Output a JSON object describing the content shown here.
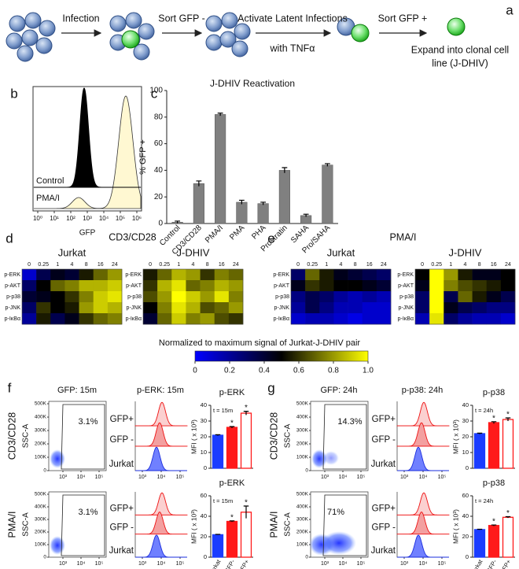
{
  "panel_labels": [
    "a",
    "b",
    "c",
    "d",
    "e",
    "f",
    "g"
  ],
  "workflow": [
    "Infection",
    "Sort GFP -",
    "Activate Latent Infections",
    "with TNFα",
    "Sort GFP +",
    "Expand into clonal cell",
    "line (J-DHIV)"
  ],
  "histogram": {
    "labels": [
      "Control",
      "PMA/I"
    ],
    "xticks": [
      "10⁰",
      "10¹",
      "10²",
      "10³",
      "10⁴",
      "10⁵",
      "10⁶"
    ],
    "xlabel": "GFP"
  },
  "chart_data": [
    {
      "type": "bar",
      "title": "J-DHIV Reactivation",
      "ylabel": "% GFP +",
      "categories": [
        "Control",
        "CD3/CD28",
        "PMA/I",
        "PMA",
        "PHA",
        "Prostratin",
        "SAHA",
        "Pro/SAHA"
      ],
      "values": [
        1,
        30,
        82,
        16,
        15,
        40,
        6,
        44
      ],
      "errors": [
        0.8,
        2,
        1,
        1.5,
        1,
        2,
        1,
        1
      ],
      "color": "#808080",
      "ylim": [
        0,
        100
      ],
      "yticks": [
        0,
        20,
        40,
        60,
        80,
        100
      ]
    },
    {
      "type": "heatmap",
      "title": "CD3/CD28",
      "columns": [
        "0",
        "0.25",
        "1",
        "4",
        "8",
        "16",
        "24"
      ],
      "rows": [
        "p-ERK",
        "p-AKT",
        "p-p38",
        "p-JNK",
        "p-IκBα"
      ],
      "panels": [
        {
          "name": "Jurkat",
          "color": "#1a1aff",
          "values": [
            [
              0.1,
              0.35,
              0.45,
              0.4,
              0.55,
              0.7,
              0.8
            ],
            [
              0.3,
              0.5,
              0.7,
              0.75,
              0.85,
              0.85,
              0.9
            ],
            [
              0.4,
              0.45,
              0.5,
              0.6,
              0.75,
              0.9,
              0.95
            ],
            [
              0.3,
              0.6,
              0.5,
              0.55,
              0.8,
              0.9,
              0.85
            ],
            [
              0.2,
              0.55,
              0.35,
              0.45,
              0.6,
              0.7,
              0.75
            ]
          ]
        },
        {
          "name": "J-DHIV",
          "color": "#ff1a1a",
          "values": [
            [
              0.55,
              0.7,
              0.85,
              0.8,
              0.6,
              0.75,
              0.7
            ],
            [
              0.6,
              0.85,
              0.95,
              0.7,
              0.75,
              0.85,
              0.8
            ],
            [
              0.65,
              0.8,
              1,
              0.9,
              0.8,
              0.95,
              0.75
            ],
            [
              0.5,
              0.75,
              0.95,
              0.85,
              0.65,
              0.7,
              0.8
            ],
            [
              0.4,
              0.7,
              0.9,
              0.75,
              0.8,
              0.65,
              0.6
            ]
          ]
        }
      ]
    },
    {
      "type": "heatmap",
      "title": "PMA/I",
      "columns": [
        "0",
        "0.25",
        "1",
        "4",
        "8",
        "16",
        "24"
      ],
      "rows": [
        "p-ERK",
        "p-AKT",
        "p-p38",
        "p-JNK",
        "p-IκBα"
      ],
      "panels": [
        {
          "name": "Jurkat",
          "color": "#1a1aff",
          "values": [
            [
              0.3,
              0.7,
              0.55,
              0.45,
              0.4,
              0.35,
              0.3
            ],
            [
              0.45,
              0.6,
              0.55,
              0.5,
              0.5,
              0.45,
              0.4
            ],
            [
              0.25,
              0.35,
              0.3,
              0.2,
              0.15,
              0.2,
              0.15
            ],
            [
              0.2,
              0.35,
              0.25,
              0.15,
              0.15,
              0.1,
              0.1
            ],
            [
              0.1,
              0.15,
              0.15,
              0.1,
              0.05,
              0.1,
              0.1
            ]
          ]
        },
        {
          "name": "J-DHIV",
          "color": "#ff1a1a",
          "values": [
            [
              0.5,
              1,
              0.8,
              0.55,
              0.45,
              0.45,
              0.5
            ],
            [
              0.45,
              1,
              0.75,
              0.65,
              0.6,
              0.55,
              0.5
            ],
            [
              0.3,
              1,
              0.35,
              0.7,
              0.55,
              0.45,
              0.35
            ],
            [
              0.3,
              1,
              0.45,
              0.35,
              0.3,
              0.25,
              0.25
            ],
            [
              0.15,
              0.95,
              0.3,
              0.2,
              0.15,
              0.15,
              0.1
            ]
          ]
        }
      ]
    },
    {
      "type": "bar",
      "title": "p-ERK",
      "annotation": "t = 15m",
      "ylabel": "MFI ( x 10³)",
      "values": [
        21,
        26,
        35
      ],
      "errors": [
        0.3,
        0.5,
        1.2
      ],
      "stars": [
        "*",
        "*"
      ],
      "colors": [
        "#1a3cff",
        "#ff1a1a",
        "#ffffff"
      ],
      "edges": [
        "#1a3cff",
        "#ff1a1a",
        "#ff1a1a"
      ],
      "ylim": [
        0,
        40
      ],
      "yticks": [
        0,
        10,
        20,
        30,
        40
      ]
    },
    {
      "type": "bar",
      "title": "p-ERK",
      "annotation": "t = 15m",
      "ylabel": "MFI ( x 10³)",
      "categories": [
        "Jurkat",
        "GFP-",
        "GFP+"
      ],
      "values": [
        22,
        35,
        44
      ],
      "errors": [
        0.3,
        0.5,
        6
      ],
      "stars": [
        "*",
        "*"
      ],
      "colors": [
        "#1a3cff",
        "#ff1a1a",
        "#ffffff"
      ],
      "edges": [
        "#1a3cff",
        "#ff1a1a",
        "#ff1a1a"
      ],
      "ylim": [
        0,
        60
      ],
      "yticks": [
        0,
        20,
        40,
        60
      ]
    },
    {
      "type": "bar",
      "title": "p-p38",
      "annotation": "t = 24h",
      "ylabel": "MFI ( x 10³)",
      "values": [
        22,
        29,
        31
      ],
      "errors": [
        0.3,
        0.6,
        1
      ],
      "stars": [
        "*",
        "*"
      ],
      "colors": [
        "#1a3cff",
        "#ff1a1a",
        "#ffffff"
      ],
      "edges": [
        "#1a3cff",
        "#ff1a1a",
        "#ff1a1a"
      ],
      "ylim": [
        0,
        40
      ],
      "yticks": [
        0,
        10,
        20,
        30,
        40
      ]
    },
    {
      "type": "bar",
      "title": "p-p38",
      "annotation": "t = 24h",
      "ylabel": "MFI ( x 10³)",
      "categories": [
        "Jurkat",
        "GFP-",
        "GFP+"
      ],
      "values": [
        27,
        31,
        39
      ],
      "errors": [
        0.3,
        0.5,
        0.6
      ],
      "stars": [
        "*",
        "*"
      ],
      "colors": [
        "#1a3cff",
        "#ff1a1a",
        "#ffffff"
      ],
      "edges": [
        "#1a3cff",
        "#ff1a1a",
        "#ff1a1a"
      ],
      "ylim": [
        0,
        60
      ],
      "yticks": [
        0,
        20,
        40,
        60
      ]
    }
  ],
  "colorbar": {
    "label": "Normalized to maximum signal of Jurkat-J-DHIV pair",
    "colors": [
      "#0000ff",
      "#000000",
      "#ffff00"
    ],
    "lim": [
      0,
      1
    ],
    "ticks": [
      0,
      0.2,
      0.4,
      0.6,
      0.8,
      {
        "value": 1,
        "label": "1.0"
      }
    ]
  },
  "flow": {
    "shared": {
      "ylabel": "SSC-A",
      "yticks": [
        "500K",
        "400K",
        "300K",
        "200K",
        "100K",
        "0"
      ],
      "xticks": [
        "10³",
        "10⁴",
        "10⁵"
      ],
      "legend": [
        "GFP+",
        "GFP -",
        "Jurkat"
      ]
    },
    "panels": [
      {
        "scatter_title": "GFP: 15m",
        "hist_title": "p-ERK: 15m",
        "rows": [
          "CD3/CD28",
          "PMA/I"
        ],
        "gates": [
          "3.1%",
          "3.1%"
        ]
      },
      {
        "scatter_title": "GFP: 24h",
        "hist_title": "p-p38: 24h",
        "rows": [
          "CD3/CD28",
          "PMA/I"
        ],
        "gates": [
          "14.3%",
          "71%"
        ]
      }
    ]
  }
}
